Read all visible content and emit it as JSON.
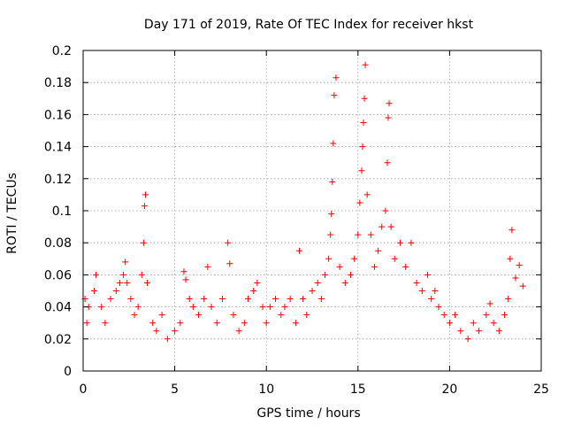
{
  "chart_data": {
    "type": "scatter",
    "title": "Day 171 of 2019, Rate Of TEC Index for receiver hkst",
    "xlabel": "GPS time / hours",
    "ylabel": "ROTI / TECUs",
    "xlim": [
      0,
      25
    ],
    "ylim": [
      0,
      0.2
    ],
    "x_ticks": [
      0,
      5,
      10,
      15,
      20,
      25
    ],
    "y_ticks": [
      0,
      0.02,
      0.04,
      0.06,
      0.08,
      0.1,
      0.12,
      0.14,
      0.16,
      0.18,
      0.2
    ],
    "x_tick_labels": [
      "0",
      "5",
      "10",
      "15",
      "20",
      "25"
    ],
    "y_tick_labels": [
      "0",
      "0.02",
      "0.04",
      "0.06",
      "0.08",
      "0.1",
      "0.12",
      "0.14",
      "0.16",
      "0.18",
      "0.2"
    ],
    "grid": true,
    "marker": "+",
    "marker_color": "#ff0000",
    "series": [
      {
        "name": "ROTI",
        "x": [
          0.1,
          0.2,
          0.3,
          0.6,
          0.7,
          1.0,
          1.2,
          1.5,
          1.8,
          2.0,
          2.2,
          2.3,
          2.4,
          2.6,
          2.8,
          3.0,
          3.2,
          3.3,
          3.35,
          3.4,
          3.5,
          3.8,
          4.0,
          4.3,
          4.6,
          5.0,
          5.3,
          5.5,
          5.6,
          5.8,
          6.0,
          6.3,
          6.6,
          6.8,
          7.0,
          7.3,
          7.6,
          7.9,
          8.0,
          8.2,
          8.5,
          8.8,
          9.0,
          9.3,
          9.5,
          9.8,
          10.0,
          10.2,
          10.5,
          10.8,
          11.0,
          11.3,
          11.6,
          11.8,
          12.0,
          12.2,
          12.5,
          12.8,
          13.0,
          13.2,
          13.4,
          13.5,
          13.55,
          13.6,
          13.65,
          13.7,
          13.8,
          14.0,
          14.3,
          14.6,
          14.8,
          15.0,
          15.1,
          15.2,
          15.25,
          15.3,
          15.35,
          15.4,
          15.5,
          15.7,
          15.9,
          16.1,
          16.3,
          16.5,
          16.6,
          16.65,
          16.7,
          16.8,
          17.0,
          17.3,
          17.6,
          17.9,
          18.2,
          18.5,
          18.8,
          19.0,
          19.2,
          19.4,
          19.7,
          20.0,
          20.3,
          20.6,
          21.0,
          21.3,
          21.6,
          22.0,
          22.2,
          22.4,
          22.7,
          23.0,
          23.2,
          23.3,
          23.4,
          23.6,
          23.8,
          24.0
        ],
        "y": [
          0.045,
          0.03,
          0.04,
          0.05,
          0.06,
          0.04,
          0.03,
          0.045,
          0.05,
          0.055,
          0.06,
          0.068,
          0.055,
          0.045,
          0.035,
          0.04,
          0.06,
          0.08,
          0.103,
          0.11,
          0.055,
          0.03,
          0.025,
          0.035,
          0.02,
          0.025,
          0.03,
          0.062,
          0.057,
          0.045,
          0.04,
          0.035,
          0.045,
          0.065,
          0.04,
          0.03,
          0.045,
          0.08,
          0.067,
          0.035,
          0.025,
          0.03,
          0.045,
          0.05,
          0.055,
          0.04,
          0.03,
          0.04,
          0.045,
          0.035,
          0.04,
          0.045,
          0.03,
          0.075,
          0.045,
          0.035,
          0.05,
          0.055,
          0.045,
          0.06,
          0.07,
          0.085,
          0.098,
          0.118,
          0.142,
          0.172,
          0.183,
          0.065,
          0.055,
          0.06,
          0.07,
          0.085,
          0.105,
          0.125,
          0.14,
          0.155,
          0.17,
          0.191,
          0.11,
          0.085,
          0.065,
          0.075,
          0.09,
          0.1,
          0.13,
          0.158,
          0.167,
          0.09,
          0.07,
          0.08,
          0.065,
          0.08,
          0.055,
          0.05,
          0.06,
          0.045,
          0.05,
          0.04,
          0.035,
          0.03,
          0.035,
          0.025,
          0.02,
          0.03,
          0.025,
          0.035,
          0.042,
          0.03,
          0.025,
          0.035,
          0.045,
          0.07,
          0.088,
          0.058,
          0.066,
          0.053
        ]
      }
    ]
  }
}
